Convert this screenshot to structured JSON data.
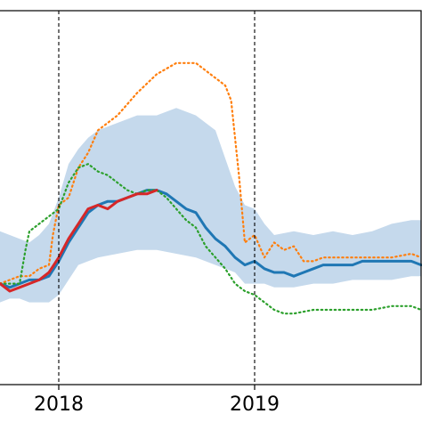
{
  "chart_data": {
    "type": "line",
    "title": "",
    "xlabel": "",
    "ylabel": "",
    "grid": false,
    "x_range": [
      2017.7,
      2019.85
    ],
    "y_range": [
      0,
      100
    ],
    "x_ticks": [
      {
        "value": 2018,
        "label": "2018"
      },
      {
        "value": 2019,
        "label": "2019"
      }
    ],
    "vlines": [
      2018,
      2019
    ],
    "band": {
      "color": "#c5d9ec",
      "upper": [
        [
          2017.7,
          41
        ],
        [
          2017.75,
          40
        ],
        [
          2017.8,
          39
        ],
        [
          2017.85,
          38
        ],
        [
          2017.9,
          40
        ],
        [
          2017.95,
          43
        ],
        [
          2018.0,
          50
        ],
        [
          2018.05,
          59
        ],
        [
          2018.1,
          63
        ],
        [
          2018.15,
          66
        ],
        [
          2018.2,
          68
        ],
        [
          2018.3,
          70
        ],
        [
          2018.4,
          72
        ],
        [
          2018.5,
          72
        ],
        [
          2018.6,
          74
        ],
        [
          2018.7,
          72
        ],
        [
          2018.8,
          68
        ],
        [
          2018.9,
          53
        ],
        [
          2018.95,
          48
        ],
        [
          2019.0,
          47
        ],
        [
          2019.05,
          43
        ],
        [
          2019.1,
          40
        ],
        [
          2019.2,
          41
        ],
        [
          2019.3,
          40
        ],
        [
          2019.4,
          41
        ],
        [
          2019.5,
          40
        ],
        [
          2019.6,
          41
        ],
        [
          2019.7,
          43
        ],
        [
          2019.8,
          44
        ],
        [
          2019.85,
          44
        ]
      ],
      "lower": [
        [
          2017.7,
          22
        ],
        [
          2017.75,
          23
        ],
        [
          2017.8,
          23
        ],
        [
          2017.85,
          22
        ],
        [
          2017.9,
          22
        ],
        [
          2017.95,
          22
        ],
        [
          2018.0,
          24
        ],
        [
          2018.05,
          28
        ],
        [
          2018.1,
          32
        ],
        [
          2018.15,
          33
        ],
        [
          2018.2,
          34
        ],
        [
          2018.3,
          35
        ],
        [
          2018.4,
          36
        ],
        [
          2018.5,
          36
        ],
        [
          2018.6,
          35
        ],
        [
          2018.7,
          34
        ],
        [
          2018.8,
          32
        ],
        [
          2018.9,
          30
        ],
        [
          2018.95,
          27
        ],
        [
          2019.0,
          27
        ],
        [
          2019.05,
          27
        ],
        [
          2019.1,
          26
        ],
        [
          2019.2,
          26
        ],
        [
          2019.3,
          27
        ],
        [
          2019.4,
          27
        ],
        [
          2019.5,
          28
        ],
        [
          2019.6,
          28
        ],
        [
          2019.7,
          28
        ],
        [
          2019.8,
          29
        ],
        [
          2019.85,
          29
        ]
      ]
    },
    "series": [
      {
        "color": "#1f77b4",
        "style": "solid",
        "width": 3,
        "points": [
          [
            2017.7,
            27
          ],
          [
            2017.75,
            26
          ],
          [
            2017.8,
            27
          ],
          [
            2017.85,
            28
          ],
          [
            2017.9,
            28
          ],
          [
            2017.95,
            29
          ],
          [
            2018.0,
            33
          ],
          [
            2018.05,
            38
          ],
          [
            2018.1,
            42
          ],
          [
            2018.15,
            46
          ],
          [
            2018.2,
            48
          ],
          [
            2018.25,
            49
          ],
          [
            2018.3,
            49
          ],
          [
            2018.35,
            50
          ],
          [
            2018.4,
            51
          ],
          [
            2018.45,
            52
          ],
          [
            2018.5,
            52
          ],
          [
            2018.55,
            51
          ],
          [
            2018.6,
            49
          ],
          [
            2018.65,
            47
          ],
          [
            2018.7,
            46
          ],
          [
            2018.75,
            42
          ],
          [
            2018.8,
            39
          ],
          [
            2018.85,
            37
          ],
          [
            2018.9,
            34
          ],
          [
            2018.95,
            32
          ],
          [
            2019.0,
            33
          ],
          [
            2019.05,
            31
          ],
          [
            2019.1,
            30
          ],
          [
            2019.15,
            30
          ],
          [
            2019.2,
            29
          ],
          [
            2019.25,
            30
          ],
          [
            2019.3,
            31
          ],
          [
            2019.35,
            32
          ],
          [
            2019.4,
            32
          ],
          [
            2019.45,
            32
          ],
          [
            2019.5,
            32
          ],
          [
            2019.55,
            33
          ],
          [
            2019.6,
            33
          ],
          [
            2019.65,
            33
          ],
          [
            2019.7,
            33
          ],
          [
            2019.75,
            33
          ],
          [
            2019.8,
            33
          ],
          [
            2019.85,
            32
          ]
        ]
      },
      {
        "color": "#ff7f0e",
        "style": "dotted",
        "width": 2.2,
        "points": [
          [
            2017.7,
            27
          ],
          [
            2017.75,
            28
          ],
          [
            2017.8,
            29
          ],
          [
            2017.85,
            29
          ],
          [
            2017.9,
            31
          ],
          [
            2017.95,
            32
          ],
          [
            2017.97,
            40
          ],
          [
            2018.0,
            48
          ],
          [
            2018.05,
            50
          ],
          [
            2018.1,
            58
          ],
          [
            2018.15,
            62
          ],
          [
            2018.2,
            68
          ],
          [
            2018.3,
            72
          ],
          [
            2018.4,
            78
          ],
          [
            2018.5,
            83
          ],
          [
            2018.6,
            86
          ],
          [
            2018.7,
            86
          ],
          [
            2018.8,
            82
          ],
          [
            2018.85,
            80
          ],
          [
            2018.88,
            76
          ],
          [
            2018.92,
            56
          ],
          [
            2018.95,
            38
          ],
          [
            2019.0,
            40
          ],
          [
            2019.05,
            34
          ],
          [
            2019.1,
            38
          ],
          [
            2019.15,
            36
          ],
          [
            2019.2,
            37
          ],
          [
            2019.25,
            33
          ],
          [
            2019.3,
            33
          ],
          [
            2019.35,
            34
          ],
          [
            2019.4,
            34
          ],
          [
            2019.5,
            34
          ],
          [
            2019.6,
            34
          ],
          [
            2019.7,
            34
          ],
          [
            2019.8,
            35
          ],
          [
            2019.85,
            34
          ]
        ]
      },
      {
        "color": "#2ca02c",
        "style": "dotted",
        "width": 2.2,
        "points": [
          [
            2017.7,
            27
          ],
          [
            2017.75,
            27
          ],
          [
            2017.8,
            27
          ],
          [
            2017.83,
            36
          ],
          [
            2017.85,
            41
          ],
          [
            2017.9,
            43
          ],
          [
            2017.95,
            45
          ],
          [
            2018.0,
            47
          ],
          [
            2018.05,
            54
          ],
          [
            2018.1,
            58
          ],
          [
            2018.15,
            59
          ],
          [
            2018.2,
            57
          ],
          [
            2018.25,
            56
          ],
          [
            2018.3,
            54
          ],
          [
            2018.35,
            52
          ],
          [
            2018.4,
            51
          ],
          [
            2018.45,
            52
          ],
          [
            2018.5,
            52
          ],
          [
            2018.55,
            50
          ],
          [
            2018.6,
            47
          ],
          [
            2018.65,
            44
          ],
          [
            2018.7,
            42
          ],
          [
            2018.75,
            37
          ],
          [
            2018.8,
            34
          ],
          [
            2018.85,
            31
          ],
          [
            2018.9,
            27
          ],
          [
            2018.95,
            25
          ],
          [
            2019.0,
            24
          ],
          [
            2019.05,
            22
          ],
          [
            2019.1,
            20
          ],
          [
            2019.15,
            19
          ],
          [
            2019.2,
            19
          ],
          [
            2019.3,
            20
          ],
          [
            2019.4,
            20
          ],
          [
            2019.5,
            20
          ],
          [
            2019.6,
            20
          ],
          [
            2019.7,
            21
          ],
          [
            2019.8,
            21
          ],
          [
            2019.85,
            20
          ]
        ]
      },
      {
        "color": "#d62728",
        "style": "solid",
        "width": 3,
        "points": [
          [
            2017.7,
            27
          ],
          [
            2017.75,
            25
          ],
          [
            2017.8,
            26
          ],
          [
            2017.85,
            27
          ],
          [
            2017.9,
            28
          ],
          [
            2017.95,
            30
          ],
          [
            2018.0,
            34
          ],
          [
            2018.05,
            39
          ],
          [
            2018.1,
            43
          ],
          [
            2018.15,
            47
          ],
          [
            2018.2,
            48
          ],
          [
            2018.25,
            47
          ],
          [
            2018.3,
            49
          ],
          [
            2018.35,
            50
          ],
          [
            2018.4,
            51
          ],
          [
            2018.45,
            51
          ],
          [
            2018.5,
            52
          ]
        ]
      }
    ]
  }
}
